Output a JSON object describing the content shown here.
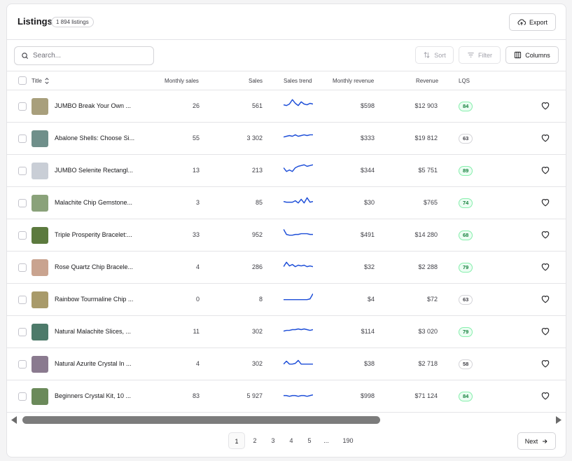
{
  "header": {
    "title": "Listings",
    "count": "1 894 listings",
    "export_label": "Export"
  },
  "toolbar": {
    "search_placeholder": "Search...",
    "sort_label": "Sort",
    "filter_label": "Filter",
    "columns_label": "Columns"
  },
  "columns": {
    "title": "Title",
    "monthly_sales": "Monthly sales",
    "sales": "Sales",
    "sales_trend": "Sales trend",
    "monthly_revenue": "Monthly revenue",
    "revenue": "Revenue",
    "lqs": "LQS"
  },
  "rows": [
    {
      "title": "JUMBO Break Your Own ...",
      "monthly_sales": "26",
      "sales": "561",
      "monthly_revenue": "$598",
      "revenue": "$12 903",
      "lqs": "84",
      "lqs_level": "good",
      "trend": [
        8,
        9,
        7,
        1,
        6,
        9,
        4,
        7,
        8,
        6,
        7
      ],
      "thumb_color": "#a89f7c"
    },
    {
      "title": "Abalone Shells: Choose Si...",
      "monthly_sales": "55",
      "sales": "3 302",
      "monthly_revenue": "$333",
      "revenue": "$19 812",
      "lqs": "63",
      "lqs_level": "mid",
      "trend": [
        8,
        7,
        6,
        7,
        5,
        7,
        6,
        5,
        6,
        5,
        5
      ],
      "thumb_color": "#6f8f8a"
    },
    {
      "title": "JUMBO Selenite Rectangl...",
      "monthly_sales": "13",
      "sales": "213",
      "monthly_revenue": "$344",
      "revenue": "$5 751",
      "lqs": "89",
      "lqs_level": "good",
      "trend": [
        6,
        11,
        9,
        11,
        6,
        4,
        3,
        2,
        4,
        3,
        2
      ],
      "thumb_color": "#c9ced6"
    },
    {
      "title": "Malachite Chip Gemstone...",
      "monthly_sales": "3",
      "sales": "85",
      "monthly_revenue": "$30",
      "revenue": "$765",
      "lqs": "74",
      "lqs_level": "good",
      "trend": [
        8,
        9,
        9,
        9,
        7,
        10,
        5,
        10,
        3,
        9,
        8
      ],
      "thumb_color": "#8aa27a"
    },
    {
      "title": "Triple Prosperity Bracelet:...",
      "monthly_sales": "33",
      "sales": "952",
      "monthly_revenue": "$491",
      "revenue": "$14 280",
      "lqs": "68",
      "lqs_level": "good",
      "trend": [
        2,
        9,
        10,
        10,
        9,
        9,
        8,
        8,
        8,
        9,
        9
      ],
      "thumb_color": "#5c7a3e"
    },
    {
      "title": "Rose Quartz Chip Bracele...",
      "monthly_sales": "4",
      "sales": "286",
      "monthly_revenue": "$32",
      "revenue": "$2 288",
      "lqs": "79",
      "lqs_level": "good",
      "trend": [
        9,
        3,
        8,
        6,
        9,
        7,
        8,
        7,
        9,
        8,
        9
      ],
      "thumb_color": "#c9a38f"
    },
    {
      "title": "Rainbow Tourmaline Chip ...",
      "monthly_sales": "0",
      "sales": "8",
      "monthly_revenue": "$4",
      "revenue": "$72",
      "lqs": "63",
      "lqs_level": "mid",
      "trend": [
        10,
        10,
        10,
        10,
        10,
        10,
        10,
        10,
        10,
        9,
        2
      ],
      "thumb_color": "#a89a6a"
    },
    {
      "title": "Natural Malachite Slices, ...",
      "monthly_sales": "11",
      "sales": "302",
      "monthly_revenue": "$114",
      "revenue": "$3 020",
      "lqs": "79",
      "lqs_level": "good",
      "trend": [
        9,
        8,
        8,
        7,
        7,
        6,
        7,
        6,
        7,
        8,
        7
      ],
      "thumb_color": "#4d7a6a"
    },
    {
      "title": "Natural Azurite Crystal In ...",
      "monthly_sales": "4",
      "sales": "302",
      "monthly_revenue": "$38",
      "revenue": "$2 718",
      "lqs": "58",
      "lqs_level": "mid",
      "trend": [
        10,
        6,
        10,
        10,
        9,
        5,
        10,
        10,
        10,
        10,
        10
      ],
      "thumb_color": "#8a7a8f"
    },
    {
      "title": "Beginners Crystal Kit, 10 ...",
      "monthly_sales": "83",
      "sales": "5 927",
      "monthly_revenue": "$998",
      "revenue": "$71 124",
      "lqs": "84",
      "lqs_level": "good",
      "trend": [
        9,
        9,
        10,
        9,
        9,
        10,
        9,
        9,
        10,
        9,
        8
      ],
      "thumb_color": "#6b8a5a"
    }
  ],
  "pagination": {
    "pages": [
      "1",
      "2",
      "3",
      "4",
      "5",
      "...",
      "190"
    ],
    "active": "1",
    "next_label": "Next"
  }
}
